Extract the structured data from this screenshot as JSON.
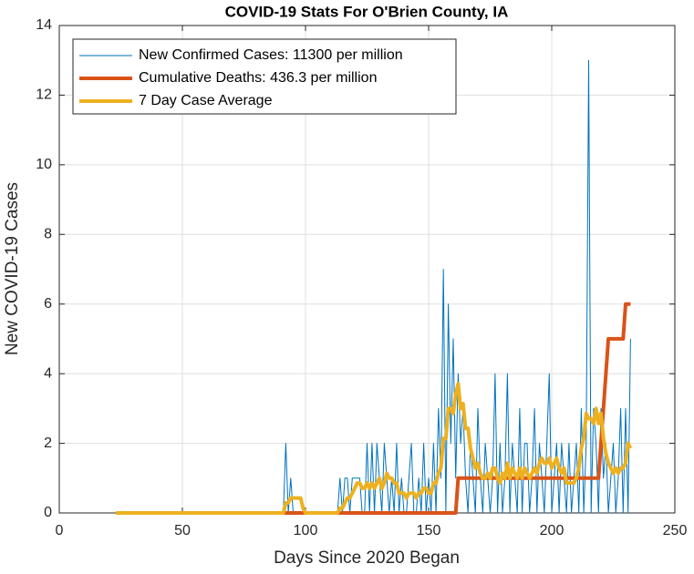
{
  "chart_data": {
    "type": "line",
    "title": "COVID-19 Stats For O'Brien County, IA",
    "xlabel": "Days Since 2020 Began",
    "ylabel": "New COVID-19 Cases",
    "xlim": [
      0,
      250
    ],
    "ylim": [
      0,
      14
    ],
    "xticks": [
      0,
      50,
      100,
      150,
      200,
      250
    ],
    "yticks": [
      0,
      2,
      4,
      6,
      8,
      10,
      12,
      14
    ],
    "grid": true,
    "legend": "northwest",
    "x": [
      23,
      24,
      25,
      26,
      27,
      28,
      29,
      30,
      31,
      32,
      33,
      34,
      35,
      36,
      37,
      38,
      39,
      40,
      41,
      42,
      43,
      44,
      45,
      46,
      47,
      48,
      49,
      50,
      51,
      52,
      53,
      54,
      55,
      56,
      57,
      58,
      59,
      60,
      61,
      62,
      63,
      64,
      65,
      66,
      67,
      68,
      69,
      70,
      71,
      72,
      73,
      74,
      75,
      76,
      77,
      78,
      79,
      80,
      81,
      82,
      83,
      84,
      85,
      86,
      87,
      88,
      89,
      90,
      91,
      92,
      93,
      94,
      95,
      96,
      97,
      98,
      99,
      100,
      101,
      102,
      103,
      104,
      105,
      106,
      107,
      108,
      109,
      110,
      111,
      112,
      113,
      114,
      115,
      116,
      117,
      118,
      119,
      120,
      121,
      122,
      123,
      124,
      125,
      126,
      127,
      128,
      129,
      130,
      131,
      132,
      133,
      134,
      135,
      136,
      137,
      138,
      139,
      140,
      141,
      142,
      143,
      144,
      145,
      146,
      147,
      148,
      149,
      150,
      151,
      152,
      153,
      154,
      155,
      156,
      157,
      158,
      159,
      160,
      161,
      162,
      163,
      164,
      165,
      166,
      167,
      168,
      169,
      170,
      171,
      172,
      173,
      174,
      175,
      176,
      177,
      178,
      179,
      180,
      181,
      182,
      183,
      184,
      185,
      186,
      187,
      188,
      189,
      190,
      191,
      192,
      193,
      194,
      195,
      196,
      197,
      198,
      199,
      200,
      201,
      202,
      203,
      204,
      205,
      206,
      207,
      208,
      209,
      210,
      211,
      212,
      213,
      214,
      215,
      216,
      217,
      218,
      219,
      220,
      221,
      222,
      223,
      224,
      225,
      226,
      227,
      228,
      229,
      230,
      231,
      232
    ],
    "series": [
      {
        "name": "New Confirmed Cases: 11300 per million",
        "color": "#0072BD",
        "width": 1,
        "values": [
          0,
          0,
          0,
          0,
          0,
          0,
          0,
          0,
          0,
          0,
          0,
          0,
          0,
          0,
          0,
          0,
          0,
          0,
          0,
          0,
          0,
          0,
          0,
          0,
          0,
          0,
          0,
          0,
          0,
          0,
          0,
          0,
          0,
          0,
          0,
          0,
          0,
          0,
          0,
          0,
          0,
          0,
          0,
          0,
          0,
          0,
          0,
          0,
          0,
          0,
          0,
          0,
          0,
          0,
          0,
          0,
          0,
          0,
          0,
          0,
          0,
          0,
          0,
          0,
          0,
          0,
          0,
          0,
          0,
          2,
          0,
          1,
          0,
          0,
          0,
          0,
          0,
          0,
          0,
          0,
          0,
          0,
          0,
          0,
          0,
          0,
          0,
          0,
          0,
          0,
          0,
          1,
          0,
          1,
          1,
          0,
          1,
          1,
          1,
          1,
          0,
          0,
          2,
          0,
          2,
          0,
          2,
          1,
          0,
          2,
          1,
          0,
          1,
          0,
          2,
          0,
          1,
          0,
          0,
          1,
          2,
          0,
          0,
          1,
          0,
          2,
          0,
          1,
          0,
          2,
          0,
          3,
          1,
          7,
          0,
          6,
          2,
          5,
          1,
          4,
          2,
          3,
          1,
          0,
          2,
          1,
          0,
          3,
          1,
          0,
          2,
          1,
          0,
          1,
          4,
          0,
          2,
          0,
          1,
          4,
          0,
          2,
          1,
          0,
          3,
          0,
          2,
          2,
          0,
          1,
          3,
          0,
          2,
          1,
          0,
          2,
          4,
          0,
          1,
          2,
          0,
          2,
          1,
          0,
          2,
          0,
          1,
          2,
          0,
          3,
          0,
          2,
          13,
          0,
          3,
          2,
          0,
          3,
          1,
          2,
          0,
          1,
          2,
          0,
          1,
          3,
          0,
          3,
          0,
          5
        ]
      },
      {
        "name": "Cumulative Deaths: 436.3 per million",
        "color": "#D95319",
        "width": 4,
        "values": [
          0,
          0,
          0,
          0,
          0,
          0,
          0,
          0,
          0,
          0,
          0,
          0,
          0,
          0,
          0,
          0,
          0,
          0,
          0,
          0,
          0,
          0,
          0,
          0,
          0,
          0,
          0,
          0,
          0,
          0,
          0,
          0,
          0,
          0,
          0,
          0,
          0,
          0,
          0,
          0,
          0,
          0,
          0,
          0,
          0,
          0,
          0,
          0,
          0,
          0,
          0,
          0,
          0,
          0,
          0,
          0,
          0,
          0,
          0,
          0,
          0,
          0,
          0,
          0,
          0,
          0,
          0,
          0,
          0,
          0,
          0,
          0,
          0,
          0,
          0,
          0,
          0,
          0,
          0,
          0,
          0,
          0,
          0,
          0,
          0,
          0,
          0,
          0,
          0,
          0,
          0,
          0,
          0,
          0,
          0,
          0,
          0,
          0,
          0,
          0,
          0,
          0,
          0,
          0,
          0,
          0,
          0,
          0,
          0,
          0,
          0,
          0,
          0,
          0,
          0,
          0,
          0,
          0,
          0,
          0,
          0,
          0,
          0,
          0,
          0,
          0,
          0,
          0,
          0,
          0,
          0,
          0,
          0,
          0,
          0,
          0,
          0,
          0,
          0,
          1,
          1,
          1,
          1,
          1,
          1,
          1,
          1,
          1,
          1,
          1,
          1,
          1,
          1,
          1,
          1,
          1,
          1,
          1,
          1,
          1,
          1,
          1,
          1,
          1,
          1,
          1,
          1,
          1,
          1,
          1,
          1,
          1,
          1,
          1,
          1,
          1,
          1,
          1,
          1,
          1,
          1,
          1,
          1,
          1,
          1,
          1,
          1,
          1,
          1,
          1,
          1,
          1,
          1,
          1,
          1,
          1,
          1,
          2,
          3,
          4,
          5,
          5,
          5,
          5,
          5,
          5,
          5,
          6,
          6,
          6
        ]
      },
      {
        "name": "7 Day Case Average",
        "color": "#EDB120",
        "width": 4,
        "values": [
          0,
          0,
          0,
          0,
          0,
          0,
          0,
          0,
          0,
          0,
          0,
          0,
          0,
          0,
          0,
          0,
          0,
          0,
          0,
          0,
          0,
          0,
          0,
          0,
          0,
          0,
          0,
          0,
          0,
          0,
          0,
          0,
          0,
          0,
          0,
          0,
          0,
          0,
          0,
          0,
          0,
          0,
          0,
          0,
          0,
          0,
          0,
          0,
          0,
          0,
          0,
          0,
          0,
          0,
          0,
          0,
          0,
          0,
          0,
          0,
          0,
          0,
          0,
          0,
          0,
          0,
          0,
          0,
          0,
          0.29,
          0.29,
          0.43,
          0.43,
          0.43,
          0.43,
          0.43,
          0.14,
          0,
          0,
          0,
          0,
          0,
          0,
          0,
          0,
          0,
          0,
          0,
          0,
          0,
          0,
          0.14,
          0.14,
          0.29,
          0.43,
          0.43,
          0.57,
          0.71,
          0.86,
          0.86,
          0.71,
          0.71,
          0.86,
          0.71,
          0.86,
          0.71,
          0.86,
          1,
          0.71,
          0.86,
          1.14,
          1,
          1,
          0.86,
          0.86,
          0.57,
          0.57,
          0.57,
          0.43,
          0.57,
          0.57,
          0.57,
          0.43,
          0.57,
          0.57,
          0.71,
          0.71,
          0.57,
          0.57,
          0.86,
          0.86,
          1.14,
          1.29,
          2.14,
          2.14,
          3,
          3,
          2.86,
          3.43,
          3.71,
          3,
          3.14,
          2.43,
          2.43,
          1.86,
          1.57,
          1.29,
          1.43,
          1.14,
          1,
          1,
          1.14,
          1,
          1.29,
          1.29,
          1,
          0.86,
          1.14,
          1,
          1.43,
          1,
          1.29,
          1.14,
          1,
          1.29,
          1,
          1.29,
          1.14,
          1,
          1.14,
          1.29,
          1.14,
          1.43,
          1.57,
          1.43,
          1.43,
          1.57,
          1.29,
          1.43,
          1.57,
          1.29,
          1.14,
          1.29,
          0.86,
          0.86,
          0.86,
          0.86,
          1,
          1.29,
          1.86,
          2.14,
          2.86,
          2.71,
          2.71,
          2.57,
          3,
          2.57,
          2.86,
          2.14,
          1.71,
          1.43,
          1.29,
          1.14,
          1.29,
          1.14,
          1.29,
          1.29,
          1.43,
          2,
          1.86
        ]
      }
    ]
  }
}
